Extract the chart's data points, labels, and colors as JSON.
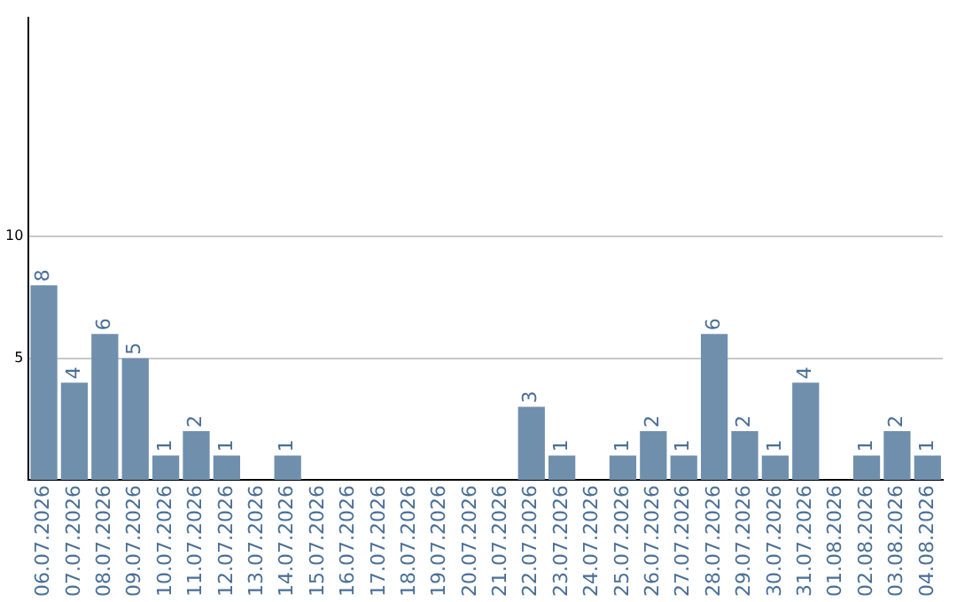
{
  "chart_data": {
    "type": "bar",
    "categories": [
      "06.07.2026",
      "07.07.2026",
      "08.07.2026",
      "09.07.2026",
      "10.07.2026",
      "11.07.2026",
      "12.07.2026",
      "13.07.2026",
      "14.07.2026",
      "15.07.2026",
      "16.07.2026",
      "17.07.2026",
      "18.07.2026",
      "19.07.2026",
      "20.07.2026",
      "21.07.2026",
      "22.07.2026",
      "23.07.2026",
      "24.07.2026",
      "25.07.2026",
      "26.07.2026",
      "27.07.2026",
      "28.07.2026",
      "29.07.2026",
      "30.07.2026",
      "31.07.2026",
      "01.08.2026",
      "02.08.2026",
      "03.08.2026",
      "04.08.2026"
    ],
    "values": [
      8,
      4,
      6,
      5,
      1,
      2,
      1,
      0,
      1,
      0,
      0,
      0,
      0,
      0,
      0,
      0,
      3,
      1,
      0,
      1,
      2,
      1,
      6,
      2,
      1,
      4,
      0,
      1,
      2,
      1
    ],
    "value_labels": [
      "8",
      "4",
      "6",
      "5",
      "1",
      "2",
      "1",
      null,
      "1",
      null,
      null,
      null,
      null,
      null,
      null,
      null,
      "3",
      "1",
      null,
      "1",
      "2",
      "1",
      "6",
      "2",
      "1",
      "4",
      null,
      "1",
      "2",
      "1"
    ],
    "color": "#6f8fad",
    "ylim": [
      0,
      19
    ],
    "yticks": [
      5,
      10
    ],
    "grid": "y",
    "legend": false
  }
}
